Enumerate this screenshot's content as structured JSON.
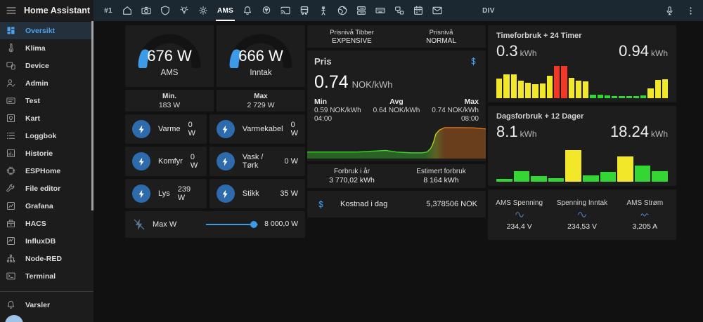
{
  "app": {
    "title": "Home Assistant",
    "menu_icon": "menu"
  },
  "sidebar": {
    "items": [
      {
        "label": "Oversikt",
        "icon": "view-dashboard",
        "active": true
      },
      {
        "label": "Klima",
        "icon": "thermometer"
      },
      {
        "label": "Device",
        "icon": "devices"
      },
      {
        "label": "Admin",
        "icon": "account-check"
      },
      {
        "label": "Test",
        "icon": "card-text"
      },
      {
        "label": "Kart",
        "icon": "map"
      },
      {
        "label": "Loggbok",
        "icon": "format-list"
      },
      {
        "label": "Historie",
        "icon": "chart-box"
      },
      {
        "label": "ESPHome",
        "icon": "chip"
      },
      {
        "label": "File editor",
        "icon": "wrench"
      },
      {
        "label": "Grafana",
        "icon": "grafana"
      },
      {
        "label": "HACS",
        "icon": "hacs"
      },
      {
        "label": "InfluxDB",
        "icon": "influxdb"
      },
      {
        "label": "Node-RED",
        "icon": "node-red"
      },
      {
        "label": "Terminal",
        "icon": "terminal"
      }
    ],
    "notifications": {
      "label": "Varsler",
      "icon": "bell"
    }
  },
  "topbar": {
    "tabs": [
      {
        "type": "text",
        "label": "#1"
      },
      {
        "type": "icon",
        "icon": "home"
      },
      {
        "type": "icon",
        "icon": "camera"
      },
      {
        "type": "icon",
        "icon": "shield"
      },
      {
        "type": "icon",
        "icon": "lightbulb-on"
      },
      {
        "type": "icon",
        "icon": "light-flood"
      },
      {
        "type": "text",
        "label": "AMS",
        "active": true
      },
      {
        "type": "icon",
        "icon": "bell-alert"
      },
      {
        "type": "icon",
        "icon": "sprout-pin"
      },
      {
        "type": "icon",
        "icon": "cast"
      },
      {
        "type": "icon",
        "icon": "bus"
      },
      {
        "type": "icon",
        "icon": "transmission-tower"
      },
      {
        "type": "icon",
        "icon": "earth"
      },
      {
        "type": "icon",
        "icon": "server-list"
      },
      {
        "type": "icon",
        "icon": "keyboard"
      },
      {
        "type": "icon",
        "icon": "network-devices"
      },
      {
        "type": "icon",
        "icon": "calendar"
      },
      {
        "type": "icon",
        "icon": "mail"
      },
      {
        "type": "text",
        "label": "DIV"
      }
    ],
    "actions": [
      {
        "icon": "microphone"
      },
      {
        "icon": "dots-vertical"
      }
    ]
  },
  "left": {
    "gauges": [
      {
        "value": "676 W",
        "label": "AMS",
        "fraction": 0.14
      },
      {
        "value": "666 W",
        "label": "Inntak",
        "fraction": 0.14
      }
    ],
    "minmax": [
      {
        "label": "Min.",
        "value": "183 W"
      },
      {
        "label": "Max",
        "value": "2 729 W"
      }
    ],
    "sensors": [
      {
        "label": "Varme",
        "value": "0 W",
        "icon": "bolt"
      },
      {
        "label": "Varmekabel",
        "value": "0 W",
        "icon": "bolt"
      },
      {
        "label": "Komfyr",
        "value": "0 W",
        "icon": "bolt"
      },
      {
        "label": "Vask / Tørk",
        "value": "0 W",
        "icon": "bolt"
      },
      {
        "label": "Lys",
        "value": "239 W",
        "icon": "bolt"
      },
      {
        "label": "Stikk",
        "value": "35 W",
        "icon": "bolt"
      }
    ],
    "slider": {
      "label": "Max W",
      "value": "8 000,0 W",
      "percent": 92,
      "icon": "flash-off"
    }
  },
  "middle": {
    "price_levels": [
      {
        "label": "Prisnivå Tibber",
        "value": "EXPENSIVE"
      },
      {
        "label": "Prisnivå",
        "value": "NORMAL"
      }
    ],
    "pris": {
      "title": "Pris",
      "icon": "currency-usd",
      "value": "0.74",
      "unit": "NOK/kWh",
      "stats": [
        {
          "label": "Min",
          "value": "0.59 NOK/kWh",
          "time": "04:00"
        },
        {
          "label": "Avg",
          "value": "0.64 NOK/kWh",
          "time": ""
        },
        {
          "label": "Max",
          "value": "0.74 NOK/kWh",
          "time": "08:00"
        }
      ],
      "chart_data": {
        "type": "area",
        "unit": "NOK/kWh",
        "ylim": [
          0.55,
          0.8
        ],
        "points": [
          [
            0,
            0.59
          ],
          [
            28,
            0.59
          ],
          [
            44,
            0.6
          ],
          [
            50,
            0.59
          ],
          [
            58,
            0.585
          ],
          [
            64,
            0.585
          ],
          [
            67,
            0.59
          ],
          [
            69,
            0.61
          ],
          [
            70,
            0.63
          ],
          [
            71,
            0.66
          ],
          [
            72,
            0.7
          ],
          [
            74,
            0.725
          ],
          [
            77,
            0.74
          ],
          [
            86,
            0.74
          ],
          [
            93,
            0.739
          ],
          [
            100,
            0.732
          ]
        ],
        "colors": {
          "low": "#3fd32c",
          "mid": "#c6d32c",
          "high": "#e2731c"
        }
      }
    },
    "consumption": [
      {
        "label": "Forbruk i år",
        "value": "3 770,02 kWh"
      },
      {
        "label": "Estimert forbruk",
        "value": "8 164 kWh"
      }
    ],
    "cost": {
      "icon": "currency-usd",
      "label": "Kostnad i dag",
      "value": "5,378506 NOK"
    }
  },
  "right": {
    "hourly": {
      "title": "Timeforbruk + 24 Timer",
      "left_value": "0.3",
      "left_unit": "kWh",
      "right_value": "0.94",
      "right_unit": "kWh",
      "chart_data": {
        "type": "bar",
        "unit": "kWh",
        "ylim": [
          0,
          1.0
        ],
        "values": [
          0.58,
          0.7,
          0.7,
          0.52,
          0.45,
          0.41,
          0.43,
          0.66,
          0.94,
          0.94,
          0.6,
          0.51,
          0.48,
          0.1,
          0.1,
          0.08,
          0.07,
          0.06,
          0.06,
          0.06,
          0.09,
          0.29,
          0.53,
          0.56
        ],
        "colors": [
          "yellow",
          "yellow",
          "yellow",
          "yellow",
          "yellow",
          "yellow",
          "yellow",
          "yellow",
          "red",
          "red",
          "yellow",
          "yellow",
          "yellow",
          "green",
          "green",
          "green",
          "green",
          "green",
          "green",
          "green",
          "green",
          "yellow",
          "yellow",
          "yellow"
        ],
        "color_map": {
          "yellow": "#f2e829",
          "red": "#f23928",
          "green": "#33d633"
        }
      }
    },
    "daily": {
      "title": "Dagsforbruk + 12 Dager",
      "left_value": "8.1",
      "left_unit": "kWh",
      "right_value": "18.24",
      "right_unit": "kWh",
      "chart_data": {
        "type": "bar",
        "unit": "kWh",
        "ylim": [
          0,
          21.5
        ],
        "values": [
          1.6,
          5.9,
          3.3,
          2.0,
          18.24,
          3.8,
          5.5,
          14.5,
          9.5,
          6.0
        ],
        "colors": [
          "green",
          "green",
          "green",
          "green",
          "yellow",
          "green",
          "green",
          "yellow",
          "green",
          "green"
        ],
        "color_map": {
          "yellow": "#f2e829",
          "red": "#f23928",
          "green": "#33d633"
        }
      }
    },
    "stats": [
      {
        "label": "AMS Spenning",
        "icon": "sine-wave",
        "value": "234,4 V"
      },
      {
        "label": "Spenning Inntak",
        "icon": "sine-wave",
        "value": "234,53 V"
      },
      {
        "label": "AMS Strøm",
        "icon": "current-ac",
        "value": "3,205 A"
      }
    ]
  }
}
